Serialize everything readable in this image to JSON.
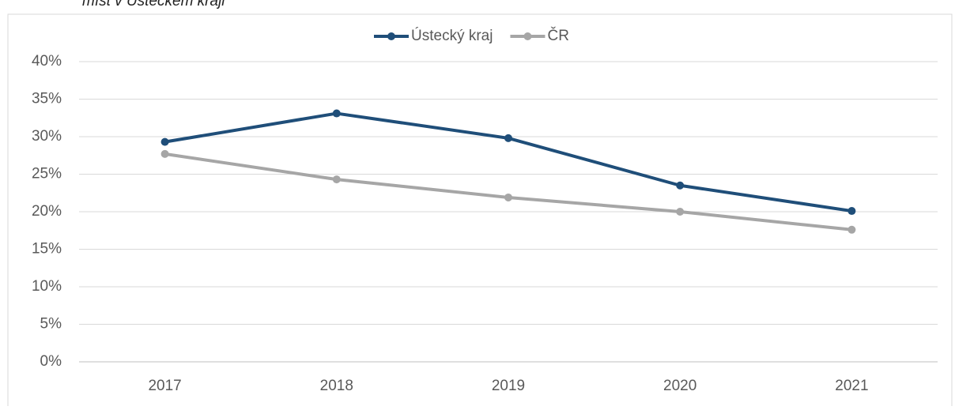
{
  "chart_data": {
    "type": "line",
    "title": "míst v Ústeckém kraji",
    "categories": [
      "2017",
      "2018",
      "2019",
      "2020",
      "2021"
    ],
    "series": [
      {
        "name": "Ústecký kraj",
        "color": "#1f4e79",
        "values": [
          29.3,
          33.1,
          29.8,
          23.5,
          20.1
        ]
      },
      {
        "name": "ČR",
        "color": "#a6a6a6",
        "values": [
          27.7,
          24.3,
          21.9,
          20.0,
          17.6
        ]
      }
    ],
    "ylim": [
      0,
      40
    ],
    "yticks": [
      {
        "value": 0,
        "label": "0%"
      },
      {
        "value": 5,
        "label": "5%"
      },
      {
        "value": 10,
        "label": "10%"
      },
      {
        "value": 15,
        "label": "15%"
      },
      {
        "value": 20,
        "label": "20%"
      },
      {
        "value": 25,
        "label": "25%"
      },
      {
        "value": 30,
        "label": "30%"
      },
      {
        "value": 35,
        "label": "35%"
      },
      {
        "value": 40,
        "label": "40%"
      }
    ],
    "grid": true,
    "legend": "top"
  }
}
